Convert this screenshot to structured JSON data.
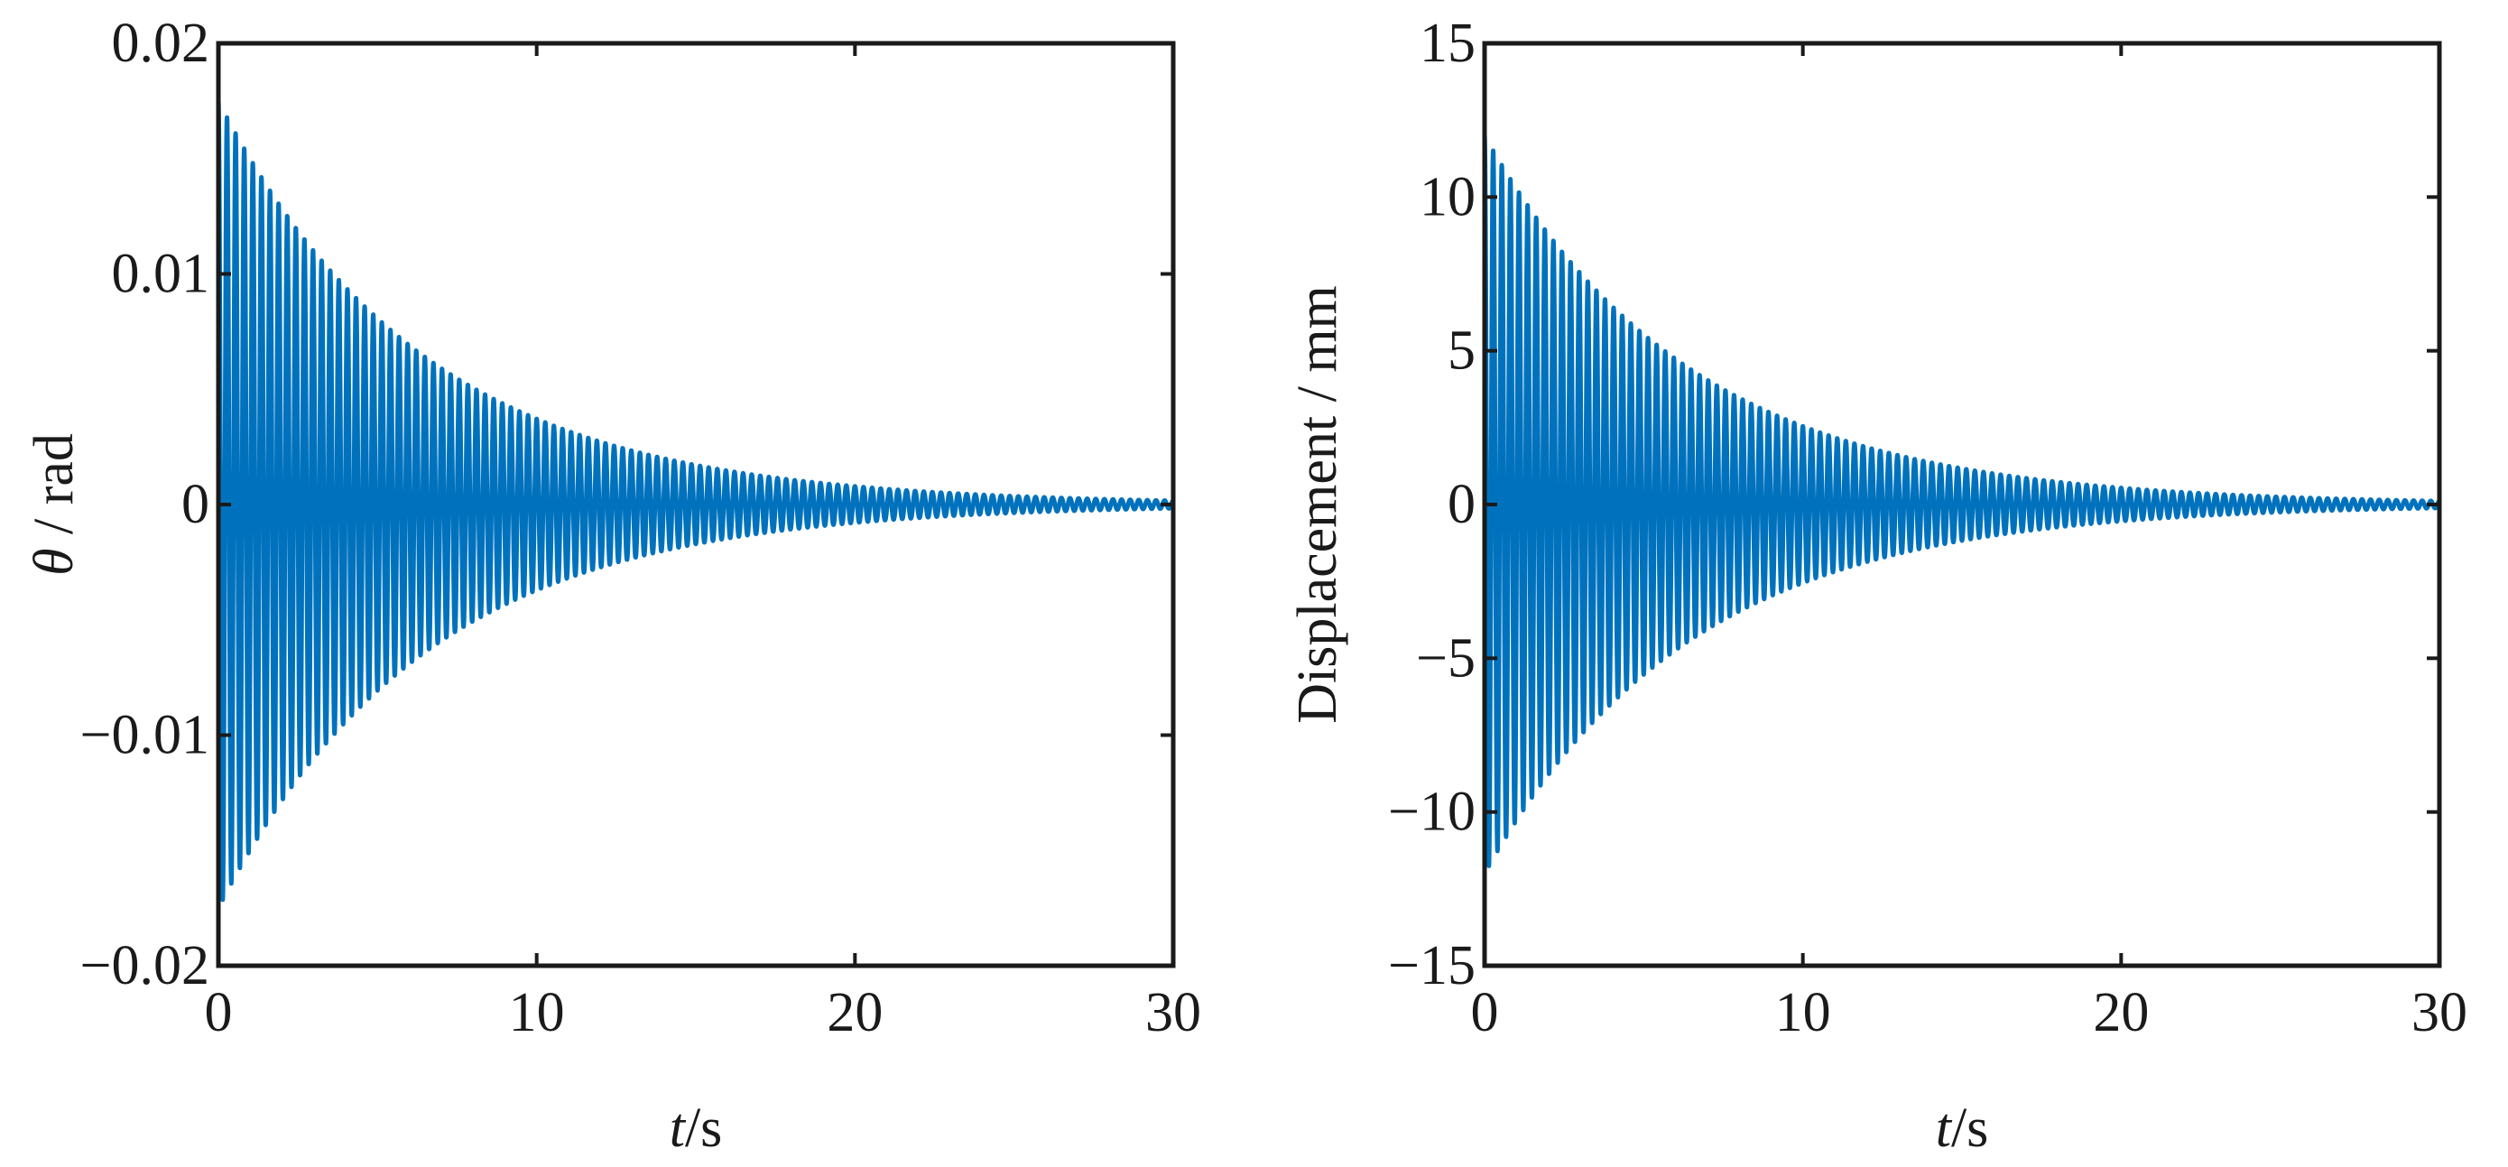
{
  "chart_data": [
    {
      "type": "line",
      "title": "",
      "xlabel_var": "t",
      "xlabel_unit": "/s",
      "ylabel_var": "θ",
      "ylabel_unit": " / rad",
      "xlim": [
        0,
        30
      ],
      "ylim": [
        -0.02,
        0.02
      ],
      "xticks": [
        0,
        10,
        20,
        30
      ],
      "xtick_labels": [
        "0",
        "10",
        "20",
        "30"
      ],
      "yticks": [
        -0.02,
        -0.01,
        0,
        0.01,
        0.02
      ],
      "ytick_labels": [
        "−0.02",
        "−0.01",
        "0",
        "0.01",
        "0.02"
      ],
      "grid": false,
      "color": "#0072BD",
      "series": [
        {
          "description_values": "damped oscillation",
          "initial_amplitude": 0.0175,
          "decay_rate_per_s": 0.155,
          "frequency_hz": 3.7,
          "t_start": 0,
          "t_end": 30,
          "envelope_samples": {
            "t": [
              0,
              5,
              10,
              15,
              20,
              25,
              30
            ],
            "amplitude": [
              0.0175,
              0.0081,
              0.0037,
              0.0017,
              0.0008,
              0.0004,
              0.0002
            ]
          }
        }
      ]
    },
    {
      "type": "line",
      "title": "",
      "xlabel_var": "t",
      "xlabel_unit": "/s",
      "ylabel_var": "",
      "ylabel_unit": "Displacement / mm",
      "xlim": [
        0,
        30
      ],
      "ylim": [
        -15,
        15
      ],
      "xticks": [
        0,
        10,
        20,
        30
      ],
      "xtick_labels": [
        "0",
        "10",
        "20",
        "30"
      ],
      "yticks": [
        -15,
        -10,
        -5,
        0,
        5,
        10,
        15
      ],
      "ytick_labels": [
        "−15",
        "−10",
        "−5",
        "0",
        "5",
        "10",
        "15"
      ],
      "grid": false,
      "color": "#0072BD",
      "series": [
        {
          "description_values": "damped oscillation",
          "initial_amplitude": 12.0,
          "decay_rate_per_s": 0.155,
          "frequency_hz": 3.7,
          "t_start": 0,
          "t_end": 30,
          "envelope_samples": {
            "t": [
              0,
              5,
              10,
              15,
              20,
              25,
              30
            ],
            "amplitude": [
              12.0,
              5.5,
              2.5,
              1.2,
              0.55,
              0.25,
              0.12
            ]
          }
        }
      ]
    }
  ]
}
